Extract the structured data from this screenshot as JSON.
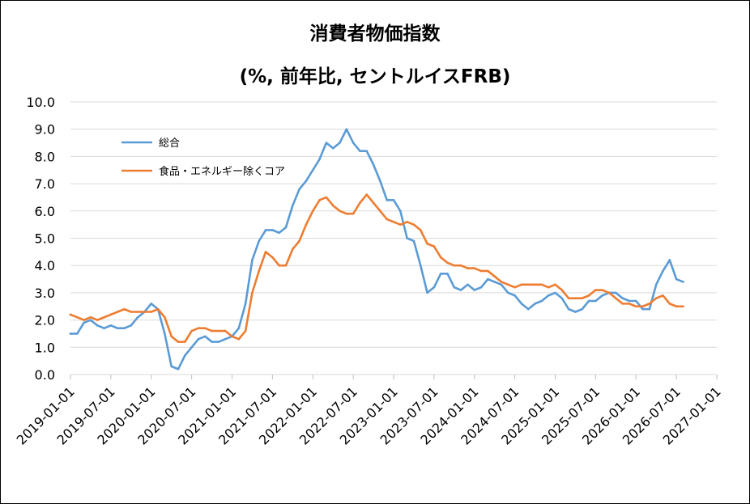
{
  "chart_data": {
    "type": "line",
    "title": "消費者物価指数",
    "subtitle": "(%, 前年比, セントルイスFRB)",
    "xlabel": "",
    "ylabel": "",
    "ylim": [
      0,
      10
    ],
    "yticks": [
      "0.0",
      "1.0",
      "2.0",
      "3.0",
      "4.0",
      "5.0",
      "6.0",
      "7.0",
      "8.0",
      "9.0",
      "10.0"
    ],
    "xticks": [
      "2019-01-01",
      "2019-07-01",
      "2020-01-01",
      "2020-07-01",
      "2021-01-01",
      "2021-07-01",
      "2022-01-01",
      "2022-07-01",
      "2023-01-01",
      "2023-07-01",
      "2024-01-01",
      "2024-07-01",
      "2025-01-01",
      "2025-07-01",
      "2026-01-01",
      "2026-07-01",
      "2027-01-01"
    ],
    "xlim": [
      "2019-01-01",
      "2027-01-01"
    ],
    "grid": true,
    "legend_position": "upper-left",
    "x": [
      "2019-01",
      "2019-02",
      "2019-03",
      "2019-04",
      "2019-05",
      "2019-06",
      "2019-07",
      "2019-08",
      "2019-09",
      "2019-10",
      "2019-11",
      "2019-12",
      "2020-01",
      "2020-02",
      "2020-03",
      "2020-04",
      "2020-05",
      "2020-06",
      "2020-07",
      "2020-08",
      "2020-09",
      "2020-10",
      "2020-11",
      "2020-12",
      "2021-01",
      "2021-02",
      "2021-03",
      "2021-04",
      "2021-05",
      "2021-06",
      "2021-07",
      "2021-08",
      "2021-09",
      "2021-10",
      "2021-11",
      "2021-12",
      "2022-01",
      "2022-02",
      "2022-03",
      "2022-04",
      "2022-05",
      "2022-06",
      "2022-07",
      "2022-08",
      "2022-09",
      "2022-10",
      "2022-11",
      "2022-12",
      "2023-01",
      "2023-02",
      "2023-03",
      "2023-04",
      "2023-05",
      "2023-06",
      "2023-07",
      "2023-08",
      "2023-09",
      "2023-10",
      "2023-11",
      "2023-12",
      "2024-01",
      "2024-02",
      "2024-03",
      "2024-04",
      "2024-05",
      "2024-06",
      "2024-07",
      "2024-08",
      "2024-09",
      "2024-10",
      "2024-11",
      "2024-12",
      "2025-01",
      "2025-02",
      "2025-03",
      "2025-04",
      "2025-05",
      "2025-06",
      "2025-07",
      "2025-08",
      "2025-09",
      "2025-10",
      "2025-11",
      "2025-12",
      "2026-01",
      "2026-02",
      "2026-03",
      "2026-04",
      "2026-05",
      "2026-06",
      "2026-07",
      "2026-08"
    ],
    "series": [
      {
        "name": "総合",
        "color": "#5B9BD5",
        "values": [
          1.5,
          1.5,
          1.9,
          2.0,
          1.8,
          1.7,
          1.8,
          1.7,
          1.7,
          1.8,
          2.1,
          2.3,
          2.6,
          2.4,
          1.5,
          0.3,
          0.2,
          0.7,
          1.0,
          1.3,
          1.4,
          1.2,
          1.2,
          1.3,
          1.4,
          1.7,
          2.6,
          4.2,
          4.9,
          5.3,
          5.3,
          5.2,
          5.4,
          6.2,
          6.8,
          7.1,
          7.5,
          7.9,
          8.5,
          8.3,
          8.5,
          9.0,
          8.5,
          8.2,
          8.2,
          7.7,
          7.1,
          6.4,
          6.4,
          6.0,
          5.0,
          4.9,
          4.0,
          3.0,
          3.2,
          3.7,
          3.7,
          3.2,
          3.1,
          3.3,
          3.1,
          3.2,
          3.5,
          3.4,
          3.3,
          3.0,
          2.9,
          2.6,
          2.4,
          2.6,
          2.7,
          2.9,
          3.0,
          2.8,
          2.4,
          2.3,
          2.4,
          2.7,
          2.7,
          2.9,
          3.0,
          3.0,
          2.8,
          2.7,
          2.7,
          2.4,
          2.4,
          3.3,
          3.8,
          4.2,
          3.5,
          3.4
        ]
      },
      {
        "name": "食品・エネルギー除くコア",
        "color": "#ED7D31",
        "values": [
          2.2,
          2.1,
          2.0,
          2.1,
          2.0,
          2.1,
          2.2,
          2.3,
          2.4,
          2.3,
          2.3,
          2.3,
          2.3,
          2.4,
          2.1,
          1.4,
          1.2,
          1.2,
          1.6,
          1.7,
          1.7,
          1.6,
          1.6,
          1.6,
          1.4,
          1.3,
          1.6,
          3.0,
          3.8,
          4.5,
          4.3,
          4.0,
          4.0,
          4.6,
          4.9,
          5.5,
          6.0,
          6.4,
          6.5,
          6.2,
          6.0,
          5.9,
          5.9,
          6.3,
          6.6,
          6.3,
          6.0,
          5.7,
          5.6,
          5.5,
          5.6,
          5.5,
          5.3,
          4.8,
          4.7,
          4.3,
          4.1,
          4.0,
          4.0,
          3.9,
          3.9,
          3.8,
          3.8,
          3.6,
          3.4,
          3.3,
          3.2,
          3.3,
          3.3,
          3.3,
          3.3,
          3.2,
          3.3,
          3.1,
          2.8,
          2.8,
          2.8,
          2.9,
          3.1,
          3.1,
          3.0,
          2.8,
          2.6,
          2.6,
          2.5,
          2.5,
          2.6,
          2.8,
          2.9,
          2.6,
          2.5,
          2.5
        ]
      }
    ]
  }
}
